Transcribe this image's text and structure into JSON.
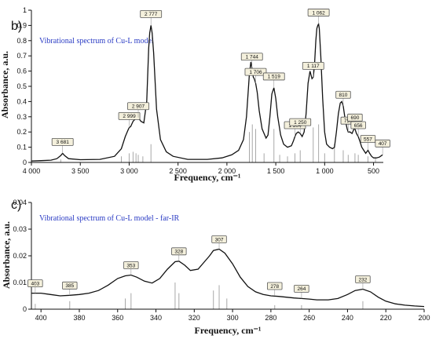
{
  "panels": [
    {
      "letter": "b)",
      "title": "Vibrational spectrum of Cu-L model",
      "xlabel": "Frequency, cm⁻¹",
      "ylabel": "Absorbance, a.u."
    },
    {
      "letter": "c)",
      "title": "Vibrational spectrum of Cu-L model - far-IR",
      "xlabel": "Frequency, cm⁻¹",
      "ylabel": "Absorbance, a.u."
    }
  ],
  "chart_data": [
    {
      "type": "line",
      "title": "Vibrational spectrum of Cu-L model",
      "xlabel": "Frequency, cm⁻¹",
      "ylabel": "Absorbance, a.u.",
      "xlim": [
        4000,
        400
      ],
      "ylim": [
        0,
        1
      ],
      "x_reversed": true,
      "x_ticks": [
        4000,
        3500,
        3000,
        2500,
        2000,
        1500,
        1000,
        500
      ],
      "x_tick_labels": [
        "4 000",
        "3 500",
        "3 000",
        "2 500",
        "2 000",
        "1 500",
        "1 000",
        "500"
      ],
      "y_ticks": [
        0,
        0.1,
        0.2,
        0.3,
        0.4,
        0.5,
        0.6,
        0.7,
        0.8,
        0.9,
        1
      ],
      "y_tick_labels": [
        "0",
        "0.1",
        "0.2",
        "0.3",
        "0.4",
        "0.5",
        "0.6",
        "0.7",
        "0.8",
        "0.9",
        "1"
      ],
      "series": [
        {
          "x": [
            4000,
            3900,
            3800,
            3740,
            3700,
            3681,
            3660,
            3620,
            3500,
            3300,
            3150,
            3080,
            3040,
            3010,
            2999,
            2985,
            2960,
            2930,
            2907,
            2880,
            2850,
            2820,
            2800,
            2790,
            2777,
            2765,
            2750,
            2720,
            2680,
            2620,
            2550,
            2400,
            2200,
            2050,
            1950,
            1880,
            1830,
            1800,
            1770,
            1755,
            1744,
            1730,
            1720,
            1706,
            1690,
            1670,
            1640,
            1600,
            1580,
            1560,
            1540,
            1519,
            1500,
            1480,
            1450,
            1420,
            1380,
            1340,
            1320,
            1304,
            1290,
            1270,
            1250,
            1230,
            1210,
            1190,
            1170,
            1150,
            1130,
            1117,
            1105,
            1090,
            1080,
            1070,
            1062,
            1055,
            1040,
            1020,
            1000,
            980,
            950,
            920,
            900,
            880,
            860,
            840,
            825,
            810,
            790,
            770,
            759,
            740,
            720,
            700,
            690,
            675,
            656,
            640,
            620,
            600,
            580,
            557,
            540,
            520,
            500,
            470,
            440,
            407
          ],
          "y": [
            0.01,
            0.012,
            0.015,
            0.025,
            0.045,
            0.06,
            0.045,
            0.025,
            0.018,
            0.02,
            0.04,
            0.09,
            0.17,
            0.215,
            0.23,
            0.235,
            0.27,
            0.29,
            0.295,
            0.27,
            0.26,
            0.4,
            0.75,
            0.85,
            0.9,
            0.85,
            0.72,
            0.35,
            0.15,
            0.07,
            0.04,
            0.02,
            0.02,
            0.03,
            0.05,
            0.08,
            0.15,
            0.3,
            0.58,
            0.66,
            0.62,
            0.56,
            0.55,
            0.52,
            0.46,
            0.34,
            0.22,
            0.16,
            0.18,
            0.3,
            0.45,
            0.49,
            0.42,
            0.3,
            0.18,
            0.12,
            0.1,
            0.11,
            0.14,
            0.17,
            0.19,
            0.2,
            0.19,
            0.17,
            0.2,
            0.32,
            0.52,
            0.6,
            0.55,
            0.56,
            0.63,
            0.8,
            0.88,
            0.9,
            0.91,
            0.88,
            0.7,
            0.42,
            0.2,
            0.12,
            0.1,
            0.09,
            0.1,
            0.2,
            0.32,
            0.39,
            0.4,
            0.37,
            0.28,
            0.22,
            0.2,
            0.2,
            0.19,
            0.22,
            0.22,
            0.19,
            0.17,
            0.14,
            0.1,
            0.08,
            0.06,
            0.08,
            0.06,
            0.04,
            0.03,
            0.03,
            0.035,
            0.05
          ]
        }
      ],
      "sticks": [
        {
          "x": 3700,
          "y": 0.02
        },
        {
          "x": 3080,
          "y": 0.04
        },
        {
          "x": 3000,
          "y": 0.06
        },
        {
          "x": 2960,
          "y": 0.07
        },
        {
          "x": 2930,
          "y": 0.06
        },
        {
          "x": 2907,
          "y": 0.05
        },
        {
          "x": 2860,
          "y": 0.04
        },
        {
          "x": 2777,
          "y": 0.12
        },
        {
          "x": 1770,
          "y": 0.2
        },
        {
          "x": 1740,
          "y": 0.25
        },
        {
          "x": 1706,
          "y": 0.22
        },
        {
          "x": 1620,
          "y": 0.06
        },
        {
          "x": 1519,
          "y": 0.22
        },
        {
          "x": 1460,
          "y": 0.05
        },
        {
          "x": 1380,
          "y": 0.04
        },
        {
          "x": 1304,
          "y": 0.06
        },
        {
          "x": 1250,
          "y": 0.08
        },
        {
          "x": 1117,
          "y": 0.23
        },
        {
          "x": 1062,
          "y": 0.25
        },
        {
          "x": 1000,
          "y": 0.06
        },
        {
          "x": 900,
          "y": 0.12
        },
        {
          "x": 810,
          "y": 0.08
        },
        {
          "x": 759,
          "y": 0.05
        },
        {
          "x": 690,
          "y": 0.06
        },
        {
          "x": 656,
          "y": 0.05
        },
        {
          "x": 557,
          "y": 0.04
        },
        {
          "x": 480,
          "y": 0.03
        }
      ],
      "annotations": [
        {
          "label": "3 681",
          "x": 3681,
          "y": 0.06
        },
        {
          "label": "2 999",
          "x": 2999,
          "y": 0.23
        },
        {
          "label": "2 907",
          "x": 2907,
          "y": 0.295
        },
        {
          "label": "2 777",
          "x": 2777,
          "y": 0.9
        },
        {
          "label": "1 744",
          "x": 1744,
          "y": 0.62
        },
        {
          "label": "1 706",
          "x": 1706,
          "y": 0.52
        },
        {
          "label": "1 519",
          "x": 1519,
          "y": 0.49
        },
        {
          "label": "1 304",
          "x": 1304,
          "y": 0.17
        },
        {
          "label": "1 250",
          "x": 1250,
          "y": 0.19
        },
        {
          "label": "1 117",
          "x": 1117,
          "y": 0.56
        },
        {
          "label": "1 062",
          "x": 1062,
          "y": 0.91
        },
        {
          "label": "810",
          "x": 810,
          "y": 0.37
        },
        {
          "label": "759",
          "x": 759,
          "y": 0.2
        },
        {
          "label": "690",
          "x": 690,
          "y": 0.22
        },
        {
          "label": "656",
          "x": 656,
          "y": 0.17
        },
        {
          "label": "557",
          "x": 557,
          "y": 0.08
        },
        {
          "label": "407",
          "x": 407,
          "y": 0.05
        }
      ]
    },
    {
      "type": "line",
      "title": "Vibrational spectrum of Cu-L model - far-IR",
      "xlabel": "Frequency, cm⁻¹",
      "ylabel": "Absorbance, a.u.",
      "xlim": [
        405,
        200
      ],
      "ylim": [
        0,
        0.04
      ],
      "x_reversed": true,
      "x_ticks": [
        400,
        380,
        360,
        340,
        320,
        300,
        280,
        260,
        240,
        220,
        200
      ],
      "x_tick_labels": [
        "400",
        "380",
        "360",
        "340",
        "320",
        "300",
        "280",
        "260",
        "240",
        "220",
        "200"
      ],
      "y_ticks": [
        0,
        0.01,
        0.02,
        0.03,
        0.04
      ],
      "y_tick_labels": [
        "0",
        "0.01",
        "0.02",
        "0.03",
        "0.04"
      ],
      "series": [
        {
          "x": [
            405,
            400,
            395,
            390,
            385,
            380,
            375,
            370,
            365,
            360,
            356,
            353,
            350,
            346,
            342,
            338,
            334,
            330,
            328,
            325,
            322,
            318,
            315,
            312,
            310,
            307,
            304,
            300,
            296,
            292,
            288,
            284,
            280,
            276,
            272,
            268,
            264,
            260,
            256,
            250,
            245,
            240,
            236,
            232,
            228,
            224,
            220,
            215,
            210,
            205,
            200
          ],
          "y": [
            0.006,
            0.006,
            0.0055,
            0.005,
            0.0052,
            0.0055,
            0.006,
            0.007,
            0.009,
            0.0115,
            0.0125,
            0.0128,
            0.012,
            0.0105,
            0.0098,
            0.0115,
            0.015,
            0.0178,
            0.018,
            0.0165,
            0.0145,
            0.015,
            0.0175,
            0.02,
            0.022,
            0.0225,
            0.021,
            0.017,
            0.012,
            0.0085,
            0.0065,
            0.0055,
            0.005,
            0.0048,
            0.0045,
            0.0042,
            0.004,
            0.0038,
            0.0035,
            0.0035,
            0.004,
            0.0055,
            0.007,
            0.0075,
            0.0065,
            0.0045,
            0.003,
            0.002,
            0.0015,
            0.0012,
            0.001
          ]
        }
      ],
      "sticks": [
        {
          "x": 403,
          "y": 0.002
        },
        {
          "x": 385,
          "y": 0.003
        },
        {
          "x": 356,
          "y": 0.004
        },
        {
          "x": 353,
          "y": 0.006
        },
        {
          "x": 330,
          "y": 0.01
        },
        {
          "x": 328,
          "y": 0.006
        },
        {
          "x": 310,
          "y": 0.007
        },
        {
          "x": 307,
          "y": 0.009
        },
        {
          "x": 303,
          "y": 0.004
        },
        {
          "x": 278,
          "y": 0.0015
        },
        {
          "x": 264,
          "y": 0.0015
        },
        {
          "x": 232,
          "y": 0.003
        }
      ],
      "annotations": [
        {
          "label": "403",
          "x": 403,
          "y": 0.006
        },
        {
          "label": "385",
          "x": 385,
          "y": 0.0052
        },
        {
          "label": "353",
          "x": 353,
          "y": 0.0128
        },
        {
          "label": "328",
          "x": 328,
          "y": 0.018
        },
        {
          "label": "307",
          "x": 307,
          "y": 0.0225
        },
        {
          "label": "278",
          "x": 278,
          "y": 0.005
        },
        {
          "label": "264",
          "x": 264,
          "y": 0.004
        },
        {
          "label": "232",
          "x": 232,
          "y": 0.0075
        }
      ]
    }
  ]
}
